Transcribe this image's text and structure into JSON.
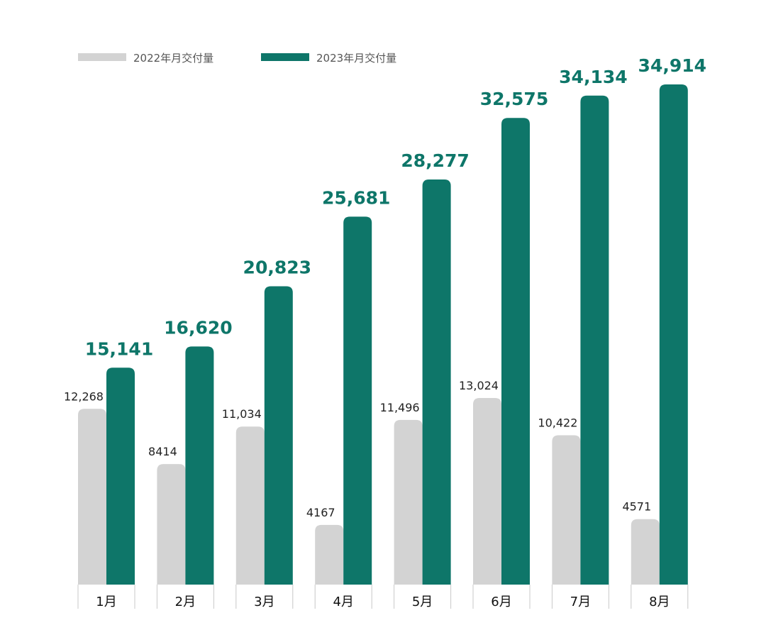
{
  "chart_data": {
    "type": "bar",
    "categories": [
      "1月",
      "2月",
      "3月",
      "4月",
      "5月",
      "6月",
      "7月",
      "8月"
    ],
    "series": [
      {
        "name": "2022年月交付量",
        "values": [
          12268,
          8414,
          11034,
          4167,
          11496,
          13024,
          10422,
          4571
        ],
        "labels": [
          "12,268",
          "8414",
          "11,034",
          "4167",
          "11,496",
          "13,024",
          "10,422",
          "4571"
        ],
        "color": "#d3d3d3"
      },
      {
        "name": "2023年月交付量",
        "values": [
          15141,
          16620,
          20823,
          25681,
          28277,
          32575,
          34134,
          34914
        ],
        "labels": [
          "15,141",
          "16,620",
          "20,823",
          "25,681",
          "28,277",
          "32,575",
          "34,134",
          "34,914"
        ],
        "color": "#0e7669"
      }
    ],
    "title": "",
    "xlabel": "",
    "ylabel": "",
    "ylim": [
      0,
      35000
    ],
    "grid": false,
    "legend": "top-left"
  }
}
